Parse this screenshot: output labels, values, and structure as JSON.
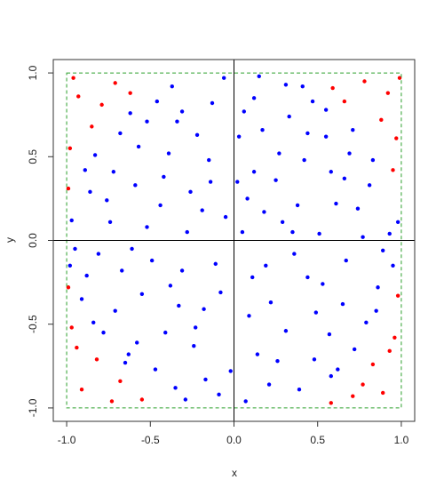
{
  "chart_data": {
    "type": "scatter",
    "xlabel": "x",
    "ylabel": "y",
    "xlim": [
      -1.08,
      1.08
    ],
    "ylim": [
      -1.08,
      1.08
    ],
    "xticks": [
      {
        "value": -1,
        "label": "-1.0"
      },
      -0.5,
      {
        "value": 0,
        "label": "0.0"
      },
      0.5,
      {
        "value": 1,
        "label": "1.0"
      }
    ],
    "yticks": [
      {
        "value": -1,
        "label": "-1.0"
      },
      -0.5,
      {
        "value": 0,
        "label": "0.0"
      },
      0.5,
      {
        "value": 1,
        "label": "1.0"
      }
    ],
    "hlines": [
      0
    ],
    "vlines": [
      0
    ],
    "square": [
      -1,
      1
    ],
    "square_color": "#2ca02c",
    "series": [
      {
        "color": "#0000ff",
        "x": [
          0.12,
          -0.34,
          0.55,
          -0.72,
          0.81,
          -0.15,
          0.38,
          -0.52,
          0.05,
          0.67,
          -0.88,
          0.22,
          -0.41,
          0.48,
          -0.09,
          0.79,
          -0.63,
          0.31,
          -0.26,
          0.93,
          -0.97,
          0.14,
          -0.31,
          0.58,
          -0.46,
          0.71,
          -0.78,
          0.03,
          -0.59,
          0.44,
          -0.18,
          0.86,
          -0.68,
          0.27,
          -0.06,
          0.62,
          -0.35,
          0.18,
          -0.83,
          0.51,
          -0.22,
          0.39,
          -0.55,
          0.74,
          -0.11,
          0.09,
          -0.91,
          0.33,
          -0.47,
          0.95,
          -0.28,
          0.65,
          -0.74,
          0.02,
          0.42,
          -0.61,
          0.21,
          -0.39,
          0.83,
          -0.13,
          0.57,
          -0.86,
          0.11,
          -0.52,
          0.36,
          -0.24,
          0.69,
          -0.71,
          0.06,
          -0.44,
          0.25,
          -0.02,
          0.47,
          -0.67,
          0.89,
          -0.33,
          0.15,
          -0.81,
          0.53,
          -0.19,
          0.72,
          -0.57,
          0.31,
          -0.95,
          0.08,
          -0.37,
          0.61,
          -0.08,
          0.44,
          -0.65,
          0.19,
          -0.29,
          0.77,
          -0.49,
          0.35,
          -0.76,
          0.12,
          -0.17,
          0.58,
          -0.89,
          0.26,
          -0.42,
          0.98,
          -0.05,
          0.66,
          -0.23,
          0.41,
          -0.58,
          0.17,
          -0.84,
          0.49,
          -0.14,
          0.85,
          -0.38,
          0.07,
          -0.62,
          0.29,
          -0.98,
          0.55,
          -0.31
        ],
        "y": [
          0.85,
          0.71,
          0.62,
          0.41,
          0.33,
          0.48,
          0.21,
          0.08,
          0.05,
          -0.12,
          -0.21,
          -0.37,
          -0.55,
          -0.71,
          -0.92,
          -0.49,
          -0.68,
          0.93,
          0.29,
          0.04,
          0.12,
          -0.68,
          -0.18,
          0.41,
          0.83,
          0.66,
          -0.55,
          0.62,
          0.33,
          -0.22,
          -0.41,
          -0.28,
          0.64,
          0.52,
          0.97,
          -0.77,
          -0.88,
          0.17,
          0.51,
          0.04,
          0.63,
          -0.89,
          -0.32,
          0.19,
          -0.14,
          -0.45,
          -0.35,
          0.74,
          -0.77,
          -0.15,
          0.05,
          -0.38,
          0.11,
          0.35,
          0.48,
          -0.05,
          -0.86,
          0.52,
          0.48,
          0.82,
          -0.56,
          0.29,
          -0.22,
          0.71,
          -0.08,
          -0.63,
          0.52,
          -0.42,
          0.77,
          0.21,
          0.36,
          -0.78,
          0.83,
          -0.18,
          -0.06,
          -0.39,
          0.98,
          -0.08,
          -0.26,
          0.18,
          -0.65,
          0.56,
          -0.54,
          -0.05,
          0.25,
          0.92,
          0.22,
          -0.31,
          0.64,
          -0.73,
          -0.15,
          -0.95,
          0.02,
          -0.12,
          0.05,
          0.24,
          0.41,
          -0.83,
          -0.81,
          0.42,
          -0.72,
          0.38,
          0.11,
          0.14,
          0.37,
          -0.52,
          0.92,
          -0.61,
          0.66,
          -0.49,
          -0.43,
          0.35,
          -0.42,
          -0.27,
          -0.96,
          0.76,
          0.11,
          -0.15,
          0.78,
          0.77
        ]
      },
      {
        "color": "#ff0000",
        "x": [
          0.92,
          0.97,
          0.78,
          0.66,
          0.88,
          0.99,
          0.59,
          0.95,
          -0.93,
          -0.71,
          -0.98,
          -0.85,
          -0.62,
          -0.96,
          -0.79,
          -0.99,
          -0.91,
          -0.73,
          -0.97,
          -0.82,
          -0.55,
          -0.94,
          -0.68,
          -0.99,
          0.89,
          0.71,
          0.96,
          0.83,
          0.58,
          0.93,
          0.77,
          0.98
        ],
        "y": [
          0.88,
          0.61,
          0.95,
          0.83,
          0.72,
          0.97,
          0.91,
          0.42,
          0.86,
          0.94,
          0.55,
          0.68,
          0.88,
          0.97,
          0.81,
          0.31,
          -0.89,
          -0.96,
          -0.52,
          -0.71,
          -0.95,
          -0.64,
          -0.84,
          -0.28,
          -0.91,
          -0.93,
          -0.58,
          -0.74,
          -0.97,
          -0.66,
          -0.86,
          -0.33
        ]
      }
    ]
  }
}
